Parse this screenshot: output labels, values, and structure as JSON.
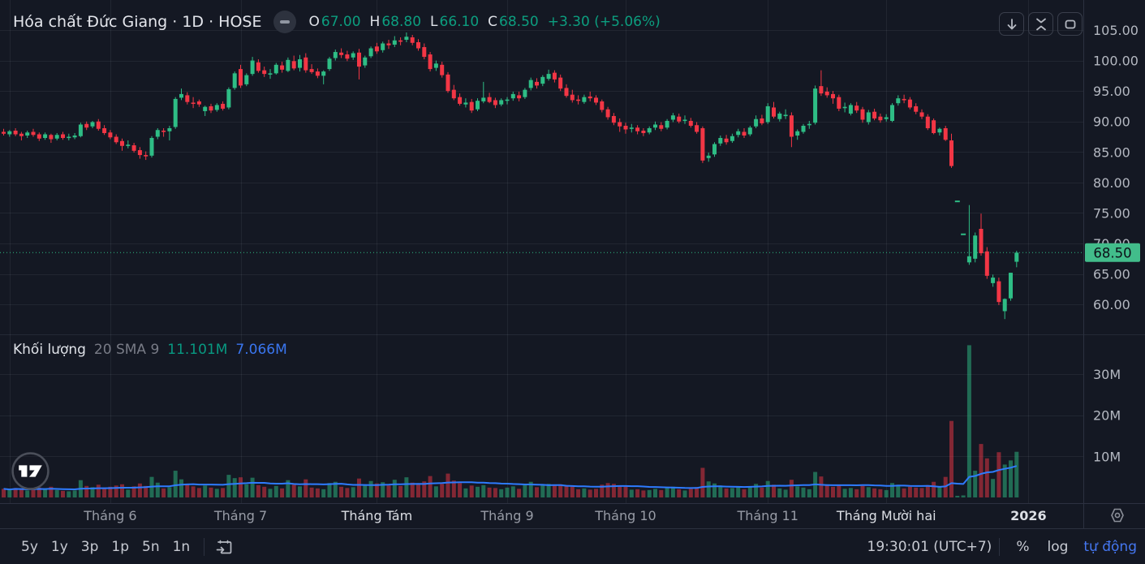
{
  "colors": {
    "bg": "#141823",
    "up": "#2ebd85",
    "down": "#f23645",
    "vol_up": "rgba(46,189,133,0.5)",
    "vol_down": "rgba(242,54,69,0.5)",
    "ma_line": "#2e7bff",
    "grid": "rgba(190,200,220,0.08)",
    "border": "#2c3140",
    "separator": "rgba(190,200,220,0.10)",
    "axis_text": "#b4b8c1",
    "month_text": "#989ca6",
    "month_text_em": "#dcdfe5",
    "label_bg": "#42bd8b",
    "label_text": "#0c1018"
  },
  "symbol_header": {
    "title": "Hóa chất Đức Giang · 1D · HOSE",
    "ohlc": [
      {
        "k": "O",
        "v": "67.00"
      },
      {
        "k": "H",
        "v": "68.80"
      },
      {
        "k": "L",
        "v": "66.10"
      },
      {
        "k": "C",
        "v": "68.50"
      }
    ],
    "change": "+3.30 (+5.06%)"
  },
  "top_right_buttons": [
    {
      "name": "scroll-to-recent-icon"
    },
    {
      "name": "collapse-pane-icon"
    },
    {
      "name": "maximize-pane-icon"
    }
  ],
  "volume_legend": {
    "title": "Khối lượng",
    "params": "20 SMA 9",
    "value": "11.101M",
    "ma_value": "7.066M"
  },
  "bottom_toolbar": {
    "ranges": [
      "5y",
      "1y",
      "3p",
      "1p",
      "5n",
      "1n"
    ],
    "clock": "19:30:01 (UTC+7)",
    "scale_buttons": [
      "%",
      "log"
    ],
    "auto_label": "tự động"
  },
  "chart_data": {
    "type": "candlestick_with_volume",
    "title": "Hóa chất Đức Giang · 1D · HOSE",
    "slots": 183,
    "volume_ma_window": 20,
    "price_axis": {
      "ticks": [
        {
          "v": 105,
          "t": "105.00"
        },
        {
          "v": 100,
          "t": "100.00"
        },
        {
          "v": 95,
          "t": "95.00"
        },
        {
          "v": 90,
          "t": "90.00"
        },
        {
          "v": 85,
          "t": "85.00"
        },
        {
          "v": 80,
          "t": "80.00"
        },
        {
          "v": 75,
          "t": "75.00"
        },
        {
          "v": 70,
          "t": "70.00"
        },
        {
          "v": 65,
          "t": "65.00"
        },
        {
          "v": 60,
          "t": "60.00"
        }
      ],
      "last_price": {
        "price": 68.5,
        "label": "68.50"
      }
    },
    "volume_axis": {
      "ticks": [
        {
          "v": 30,
          "t": "30M"
        },
        {
          "v": 20,
          "t": "20M"
        },
        {
          "v": 10,
          "t": "10M"
        }
      ]
    },
    "time_axis": {
      "months": [
        {
          "slot": 18,
          "label": "Tháng 6",
          "em": false,
          "bold": false
        },
        {
          "slot": 40,
          "label": "Tháng 7",
          "em": false,
          "bold": false
        },
        {
          "slot": 63,
          "label": "Tháng Tám",
          "em": true,
          "bold": false
        },
        {
          "slot": 85,
          "label": "Tháng 9",
          "em": false,
          "bold": false
        },
        {
          "slot": 105,
          "label": "Tháng 10",
          "em": false,
          "bold": false
        },
        {
          "slot": 129,
          "label": "Tháng 11",
          "em": false,
          "bold": false
        },
        {
          "slot": 149,
          "label": "Tháng Mười hai",
          "em": true,
          "bold": false
        },
        {
          "slot": 173,
          "label": "2026",
          "em": true,
          "bold": true
        }
      ],
      "extra_gridline_slots": [
        1
      ]
    },
    "candles": [
      [
        88.3,
        88.8,
        87.7,
        88.0,
        2.1
      ],
      [
        87.9,
        88.6,
        87.5,
        88.4,
        1.8
      ],
      [
        88.5,
        88.9,
        87.6,
        87.9,
        2.3
      ],
      [
        88.0,
        88.3,
        86.9,
        87.6,
        2.0
      ],
      [
        87.7,
        88.5,
        87.3,
        88.2,
        1.7
      ],
      [
        88.3,
        88.8,
        87.5,
        87.8,
        2.2
      ],
      [
        87.9,
        88.2,
        86.8,
        87.2,
        2.4
      ],
      [
        87.3,
        88.2,
        87.0,
        87.9,
        1.9
      ],
      [
        87.8,
        88.0,
        86.5,
        87.1,
        2.6
      ],
      [
        87.2,
        88.1,
        86.9,
        87.8,
        1.8
      ],
      [
        87.9,
        88.3,
        87.0,
        87.3,
        1.6
      ],
      [
        87.4,
        88.0,
        86.9,
        87.5,
        1.5
      ],
      [
        87.4,
        88.1,
        87.1,
        87.7,
        1.7
      ],
      [
        87.6,
        89.8,
        87.4,
        89.5,
        4.2
      ],
      [
        89.6,
        90.0,
        88.6,
        89.0,
        2.8
      ],
      [
        89.2,
        90.1,
        88.9,
        89.9,
        2.5
      ],
      [
        90.0,
        90.4,
        88.5,
        88.8,
        3.1
      ],
      [
        88.9,
        89.4,
        87.8,
        88.1,
        2.4
      ],
      [
        88.2,
        88.6,
        87.1,
        87.4,
        2.6
      ],
      [
        87.5,
        87.9,
        86.3,
        86.6,
        2.9
      ],
      [
        86.8,
        87.2,
        85.2,
        86.0,
        3.2
      ],
      [
        86.1,
        86.9,
        85.6,
        86.2,
        1.9
      ],
      [
        86.1,
        86.5,
        84.9,
        85.2,
        2.7
      ],
      [
        85.3,
        85.8,
        83.9,
        84.5,
        3.4
      ],
      [
        84.5,
        85.1,
        83.7,
        84.3,
        2.8
      ],
      [
        84.4,
        87.6,
        84.1,
        87.3,
        5.0
      ],
      [
        87.5,
        88.9,
        87.1,
        88.6,
        3.6
      ],
      [
        88.5,
        88.9,
        87.5,
        88.3,
        2.2
      ],
      [
        88.4,
        89.3,
        86.9,
        88.9,
        2.5
      ],
      [
        89.1,
        94.0,
        88.8,
        93.7,
        6.5
      ],
      [
        93.9,
        95.4,
        93.5,
        94.5,
        4.4
      ],
      [
        94.3,
        94.8,
        92.8,
        93.2,
        3.3
      ],
      [
        93.1,
        94.0,
        92.2,
        92.9,
        2.7
      ],
      [
        93.3,
        93.6,
        92.4,
        92.8,
        2.3
      ],
      [
        91.7,
        92.6,
        90.9,
        92.4,
        2.9
      ],
      [
        92.5,
        92.9,
        91.4,
        91.8,
        2.4
      ],
      [
        91.9,
        93.0,
        91.6,
        92.7,
        2.1
      ],
      [
        92.9,
        93.3,
        91.8,
        92.1,
        2.3
      ],
      [
        92.3,
        95.6,
        92.0,
        95.3,
        5.5
      ],
      [
        95.5,
        98.2,
        95.2,
        97.9,
        4.7
      ],
      [
        98.6,
        99.3,
        95.5,
        95.9,
        4.9
      ],
      [
        96.1,
        97.9,
        95.8,
        97.6,
        3.2
      ],
      [
        97.8,
        100.6,
        97.5,
        100.0,
        4.8
      ],
      [
        99.7,
        100.2,
        98.0,
        98.3,
        3.0
      ],
      [
        98.4,
        99.0,
        97.3,
        97.8,
        2.6
      ],
      [
        97.7,
        98.6,
        97.0,
        97.9,
        2.1
      ],
      [
        97.9,
        99.6,
        97.7,
        99.3,
        2.8
      ],
      [
        99.2,
        99.8,
        98.0,
        98.5,
        2.2
      ],
      [
        98.3,
        100.5,
        98.1,
        100.1,
        4.2
      ],
      [
        99.9,
        100.8,
        98.4,
        98.7,
        3.1
      ],
      [
        98.8,
        100.9,
        98.2,
        100.2,
        2.7
      ],
      [
        100.5,
        101.2,
        98.0,
        98.4,
        4.4
      ],
      [
        98.6,
        99.4,
        97.8,
        98.1,
        2.4
      ],
      [
        98.2,
        98.7,
        97.1,
        97.5,
        2.2
      ],
      [
        97.5,
        98.4,
        96.1,
        98.2,
        2.0
      ],
      [
        98.6,
        100.6,
        98.3,
        100.3,
        3.5
      ],
      [
        100.4,
        101.8,
        100.0,
        101.4,
        3.8
      ],
      [
        101.3,
        102.0,
        100.4,
        100.9,
        2.6
      ],
      [
        101.0,
        101.6,
        99.9,
        100.3,
        2.3
      ],
      [
        100.5,
        101.5,
        100.1,
        101.2,
        2.5
      ],
      [
        101.3,
        101.9,
        96.9,
        99.0,
        4.6
      ],
      [
        99.2,
        100.8,
        98.8,
        100.5,
        3.0
      ],
      [
        100.7,
        102.3,
        100.4,
        102.0,
        4.0
      ],
      [
        102.3,
        102.9,
        101.1,
        101.5,
        3.4
      ],
      [
        101.7,
        103.1,
        101.3,
        102.8,
        3.7
      ],
      [
        102.8,
        103.4,
        101.9,
        102.5,
        2.9
      ],
      [
        102.6,
        104.0,
        102.2,
        103.3,
        4.3
      ],
      [
        103.3,
        103.8,
        102.5,
        103.2,
        2.8
      ],
      [
        103.4,
        104.6,
        103.0,
        103.9,
        4.9
      ],
      [
        103.8,
        104.2,
        102.5,
        102.9,
        3.6
      ],
      [
        103.0,
        103.5,
        101.6,
        102.0,
        3.2
      ],
      [
        102.2,
        102.8,
        100.2,
        100.6,
        3.9
      ],
      [
        101.0,
        101.4,
        98.2,
        98.6,
        5.2
      ],
      [
        98.8,
        100.0,
        98.3,
        99.5,
        2.7
      ],
      [
        99.3,
        99.8,
        97.2,
        97.6,
        3.3
      ],
      [
        97.7,
        98.1,
        94.7,
        95.0,
        5.8
      ],
      [
        95.2,
        96.0,
        93.5,
        93.8,
        4.1
      ],
      [
        94.0,
        94.6,
        92.6,
        92.9,
        3.5
      ],
      [
        92.8,
        93.8,
        92.3,
        93.1,
        2.2
      ],
      [
        93.2,
        93.7,
        91.4,
        91.8,
        2.9
      ],
      [
        92.0,
        93.8,
        91.7,
        93.4,
        2.6
      ],
      [
        93.3,
        96.5,
        93.0,
        93.9,
        3.0
      ],
      [
        94.0,
        94.7,
        93.0,
        93.2,
        2.4
      ],
      [
        93.5,
        93.9,
        92.2,
        92.7,
        2.3
      ],
      [
        92.8,
        93.8,
        92.5,
        93.5,
        2.0
      ],
      [
        93.4,
        94.0,
        92.8,
        93.6,
        2.4
      ],
      [
        93.8,
        94.9,
        93.4,
        94.5,
        2.7
      ],
      [
        94.3,
        94.9,
        93.3,
        93.8,
        2.1
      ],
      [
        94.0,
        95.5,
        93.7,
        95.2,
        3.1
      ],
      [
        95.5,
        97.2,
        95.1,
        96.8,
        3.8
      ],
      [
        96.5,
        97.1,
        95.4,
        95.9,
        2.5
      ],
      [
        96.2,
        97.6,
        95.8,
        97.3,
        3.0
      ],
      [
        97.0,
        98.5,
        96.7,
        97.8,
        3.3
      ],
      [
        98.0,
        98.4,
        96.4,
        96.9,
        2.9
      ],
      [
        97.2,
        97.7,
        95.0,
        95.4,
        3.2
      ],
      [
        95.5,
        96.1,
        93.9,
        94.2,
        3.0
      ],
      [
        94.4,
        95.2,
        93.1,
        93.5,
        2.6
      ],
      [
        93.6,
        94.3,
        92.8,
        93.4,
        2.0
      ],
      [
        93.2,
        94.4,
        92.9,
        94.0,
        2.2
      ],
      [
        94.1,
        94.9,
        93.3,
        93.8,
        1.9
      ],
      [
        93.9,
        94.3,
        92.7,
        93.1,
        2.1
      ],
      [
        93.3,
        93.6,
        91.5,
        91.9,
        3.1
      ],
      [
        92.0,
        92.4,
        90.3,
        90.7,
        3.5
      ],
      [
        90.9,
        91.4,
        89.4,
        89.8,
        3.3
      ],
      [
        89.9,
        90.5,
        88.3,
        89.2,
        2.8
      ],
      [
        89.3,
        89.8,
        88.0,
        88.7,
        2.6
      ],
      [
        88.8,
        89.6,
        88.2,
        89.0,
        1.9
      ],
      [
        89.0,
        89.4,
        87.9,
        88.4,
        2.0
      ],
      [
        88.5,
        88.9,
        87.6,
        88.1,
        1.7
      ],
      [
        88.2,
        89.2,
        87.9,
        88.9,
        1.8
      ],
      [
        89.0,
        90.0,
        88.6,
        89.5,
        2.1
      ],
      [
        89.4,
        89.9,
        88.4,
        88.8,
        1.8
      ],
      [
        89.0,
        90.4,
        88.7,
        90.1,
        2.4
      ],
      [
        90.3,
        91.4,
        89.9,
        91.0,
        2.6
      ],
      [
        90.8,
        91.3,
        89.7,
        90.0,
        2.0
      ],
      [
        90.2,
        91.0,
        89.6,
        90.3,
        1.7
      ],
      [
        90.1,
        90.6,
        89.0,
        89.3,
        2.1
      ],
      [
        89.4,
        89.9,
        88.0,
        88.3,
        2.5
      ],
      [
        88.9,
        89.2,
        83.2,
        83.6,
        7.2
      ],
      [
        84.0,
        84.9,
        83.4,
        84.4,
        3.9
      ],
      [
        84.6,
        86.6,
        84.2,
        86.3,
        3.4
      ],
      [
        86.4,
        87.7,
        86.0,
        87.3,
        2.9
      ],
      [
        87.2,
        87.8,
        86.2,
        86.6,
        2.2
      ],
      [
        86.8,
        88.0,
        86.5,
        87.6,
        2.3
      ],
      [
        87.8,
        88.8,
        87.4,
        88.4,
        2.5
      ],
      [
        88.3,
        88.9,
        87.3,
        87.7,
        2.0
      ],
      [
        87.9,
        89.3,
        87.6,
        89.0,
        2.6
      ],
      [
        89.2,
        91.0,
        88.9,
        90.4,
        3.3
      ],
      [
        90.5,
        91.1,
        89.4,
        89.7,
        2.4
      ],
      [
        89.9,
        93.0,
        89.6,
        92.5,
        4.0
      ],
      [
        92.3,
        93.2,
        90.5,
        90.8,
        3.1
      ],
      [
        90.4,
        91.6,
        90.0,
        91.3,
        2.2
      ],
      [
        90.9,
        92.0,
        90.4,
        91.1,
        1.9
      ],
      [
        91.0,
        91.5,
        85.8,
        87.5,
        4.3
      ],
      [
        87.7,
        88.7,
        87.0,
        88.4,
        2.7
      ],
      [
        88.3,
        89.6,
        88.0,
        89.3,
        2.4
      ],
      [
        89.4,
        90.1,
        88.8,
        89.6,
        2.0
      ],
      [
        89.8,
        95.9,
        89.5,
        95.4,
        6.2
      ],
      [
        95.8,
        98.4,
        94.2,
        94.6,
        5.1
      ],
      [
        94.9,
        95.6,
        93.9,
        94.3,
        3.0
      ],
      [
        94.5,
        95.0,
        92.9,
        93.8,
        2.6
      ],
      [
        94.0,
        94.4,
        91.7,
        92.1,
        2.9
      ],
      [
        92.3,
        93.1,
        91.5,
        92.4,
        2.1
      ],
      [
        91.3,
        93.0,
        91.0,
        92.7,
        2.3
      ],
      [
        92.6,
        93.2,
        91.4,
        91.8,
        2.0
      ],
      [
        92.0,
        92.4,
        89.8,
        90.3,
        2.8
      ],
      [
        89.9,
        91.9,
        89.5,
        91.5,
        2.5
      ],
      [
        91.6,
        92.1,
        90.2,
        90.5,
        2.2
      ],
      [
        90.8,
        91.3,
        89.8,
        90.2,
        2.0
      ],
      [
        90.4,
        91.2,
        90.0,
        90.7,
        1.8
      ],
      [
        90.1,
        93.0,
        89.9,
        92.7,
        3.5
      ],
      [
        93.0,
        94.3,
        92.6,
        93.8,
        3.1
      ],
      [
        93.7,
        94.4,
        93.0,
        93.6,
        2.2
      ],
      [
        93.6,
        94.0,
        92.0,
        92.3,
        2.6
      ],
      [
        92.5,
        93.0,
        91.2,
        91.6,
        2.4
      ],
      [
        91.5,
        92.0,
        90.4,
        90.8,
        2.3
      ],
      [
        90.8,
        91.2,
        88.6,
        88.9,
        3.0
      ],
      [
        90.2,
        90.5,
        87.9,
        88.1,
        3.8
      ],
      [
        88.2,
        89.0,
        87.7,
        88.8,
        2.5
      ],
      [
        88.9,
        89.3,
        86.8,
        87.0,
        5.0
      ],
      [
        86.9,
        88.0,
        82.4,
        82.7,
        18.6
      ],
      [
        76.9,
        76.9,
        76.9,
        76.9,
        0.4
      ],
      [
        71.5,
        71.5,
        71.5,
        71.5,
        0.5
      ],
      [
        66.9,
        76.3,
        66.5,
        67.9,
        37.0
      ],
      [
        67.5,
        71.8,
        66.9,
        71.3,
        6.5
      ],
      [
        72.4,
        74.9,
        68.0,
        68.4,
        13.0
      ],
      [
        68.7,
        69.4,
        64.2,
        64.7,
        9.5
      ],
      [
        63.5,
        64.9,
        62.9,
        64.4,
        4.5
      ],
      [
        63.8,
        64.4,
        59.9,
        60.4,
        11.0
      ],
      [
        58.9,
        61.0,
        57.6,
        60.9,
        8.0
      ],
      [
        61.0,
        65.2,
        60.6,
        65.2,
        9.0
      ],
      [
        67.0,
        68.8,
        66.1,
        68.5,
        11.101
      ]
    ]
  }
}
